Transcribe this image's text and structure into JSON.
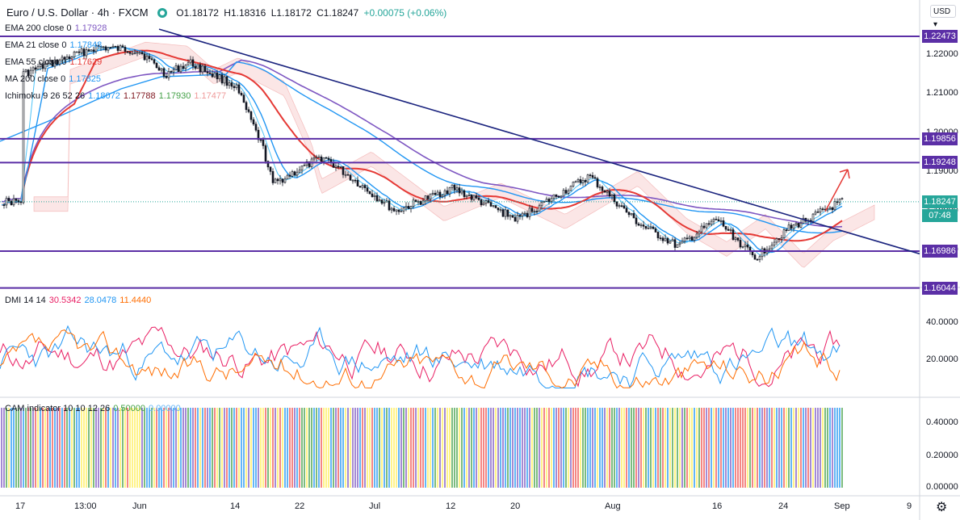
{
  "header": {
    "symbol": "Euro / U.S. Dollar · 4h · FXCM",
    "ohlc": [
      "O1.18172",
      "H1.18316",
      "L1.18172",
      "C1.18247",
      "+0.00075 (+0.06%)"
    ]
  },
  "currency_button": "USD",
  "legends": [
    {
      "label": "EMA 200 close 0",
      "values": [
        {
          "v": "1.17928",
          "color": "#7e57c2"
        }
      ]
    },
    {
      "label": "EMA 21 close 0",
      "values": [
        {
          "v": "1.17848",
          "color": "#2196f3"
        }
      ]
    },
    {
      "label": "EMA 55 close 0",
      "values": [
        {
          "v": "1.17629",
          "color": "#e53935"
        }
      ]
    },
    {
      "label": "MA 200 close 0",
      "values": [
        {
          "v": "1.17825",
          "color": "#2196f3"
        }
      ]
    },
    {
      "label": "Ichimoku 9 26 52 26",
      "values": [
        {
          "v": "1.18072",
          "color": "#2196f3"
        },
        {
          "v": "1.17788",
          "color": "#801922"
        },
        {
          "v": "1.17930",
          "color": "#43a047"
        },
        {
          "v": "1.17477",
          "color": "#ef9a9a"
        }
      ]
    }
  ],
  "dmi_legend": {
    "label": "DMI 14 14",
    "values": [
      {
        "v": "30.5342",
        "color": "#e91e63"
      },
      {
        "v": "28.0478",
        "color": "#2196f3"
      },
      {
        "v": "11.4440",
        "color": "#ff6d00"
      }
    ]
  },
  "cam_legend": {
    "label": "CAM indicator 10 10 12 26",
    "values": [
      {
        "v": "0.50000",
        "color": "#43a047"
      },
      {
        "v": "0.00000",
        "color": "#64b5f6"
      }
    ]
  },
  "price_axis": {
    "ticks": [
      "1.22000",
      "1.21000",
      "1.20000",
      "1.19000",
      "1.18000",
      "1.17000"
    ],
    "badges": [
      {
        "label": "1.22473",
        "value": 1.22473,
        "color": "#5b2fa6"
      },
      {
        "label": "1.19856",
        "value": 1.19856,
        "color": "#5b2fa6"
      },
      {
        "label": "1.19248",
        "value": 1.19248,
        "color": "#5b2fa6"
      },
      {
        "label": "1.18247",
        "value": 1.18247,
        "color": "#26a69a"
      },
      {
        "label": "1.16986",
        "value": 1.16986,
        "color": "#5b2fa6"
      },
      {
        "label": "1.16044",
        "value": 1.16044,
        "color": "#5b2fa6"
      }
    ],
    "countdown": "07:48"
  },
  "dmi_axis": {
    "ticks": [
      "40.0000",
      "20.0000"
    ]
  },
  "cam_axis": {
    "ticks": [
      "0.40000",
      "0.20000",
      "0.00000"
    ]
  },
  "time_axis": [
    "17",
    "13:00",
    "Jun",
    "14",
    "22",
    "Jul",
    "12",
    "20",
    "Aug",
    "16",
    "24",
    "Sep",
    "9"
  ],
  "chart_data": {
    "type": "line",
    "title": "Euro / U.S. Dollar · 4h · FXCM",
    "horizontal_levels": [
      1.22473,
      1.19856,
      1.19248,
      1.16986,
      1.16044
    ],
    "last_price": 1.18247,
    "price_path": [
      {
        "t": "May 17",
        "v": 1.215
      },
      {
        "t": "May 25",
        "v": 1.222
      },
      {
        "t": "Jun 1",
        "v": 1.221
      },
      {
        "t": "Jun 4",
        "v": 1.215
      },
      {
        "t": "Jun 8",
        "v": 1.218
      },
      {
        "t": "Jun 14",
        "v": 1.212
      },
      {
        "t": "Jun 17",
        "v": 1.196
      },
      {
        "t": "Jun 18",
        "v": 1.187
      },
      {
        "t": "Jun 25",
        "v": 1.194
      },
      {
        "t": "Jul 7",
        "v": 1.18
      },
      {
        "t": "Jul 12",
        "v": 1.186
      },
      {
        "t": "Jul 20",
        "v": 1.178
      },
      {
        "t": "Jul 30",
        "v": 1.189
      },
      {
        "t": "Aug 6",
        "v": 1.177
      },
      {
        "t": "Aug 11",
        "v": 1.171
      },
      {
        "t": "Aug 16",
        "v": 1.178
      },
      {
        "t": "Aug 20",
        "v": 1.168
      },
      {
        "t": "Aug 24",
        "v": 1.175
      },
      {
        "t": "Aug 31",
        "v": 1.1825
      }
    ],
    "trendline": {
      "from": {
        "t": "Jun 1",
        "v": 1.2245
      },
      "to": {
        "t": "Sep 4",
        "v": 1.17
      }
    },
    "dmi_range": [
      0,
      55
    ],
    "cam_range": [
      0,
      0.5
    ]
  }
}
